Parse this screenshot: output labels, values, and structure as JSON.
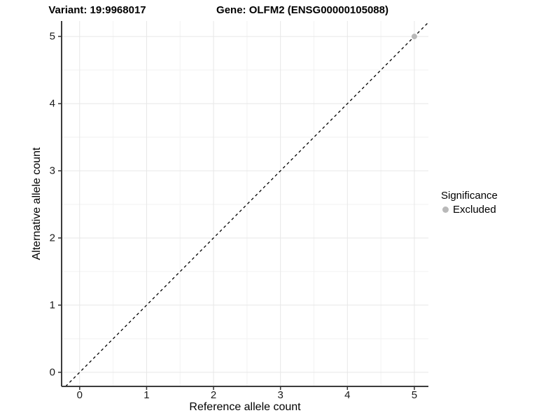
{
  "chart_data": {
    "type": "scatter",
    "titles": {
      "left": "Variant: 19:9968017",
      "right": "Gene: OLFM2 (ENSG00000105088)"
    },
    "xlabel": "Reference allele count",
    "ylabel": "Alternative allele count",
    "x_ticks": [
      0,
      1,
      2,
      3,
      4,
      5
    ],
    "y_ticks": [
      0,
      1,
      2,
      3,
      4,
      5
    ],
    "xlim": [
      -0.27,
      5.21
    ],
    "ylim": [
      -0.21,
      5.23
    ],
    "grid": {
      "visible": true,
      "major_color": "#e7e7e7",
      "minor_color": "#f2f2f2",
      "minor_at_midpoints": true
    },
    "axis_line_color": "#3c3c3c",
    "tick_mark_color": "#333333",
    "identity_line": {
      "equation": "y = x",
      "style": "dashed",
      "color": "#000000"
    },
    "series": [
      {
        "name": "Excluded",
        "color": "#b9b9b9",
        "points": [
          [
            5,
            5
          ]
        ]
      }
    ],
    "legend": {
      "position": "right",
      "title": "Significance",
      "items": [
        {
          "label": "Excluded",
          "color": "#b9b9b9",
          "marker": "circle"
        }
      ]
    }
  }
}
